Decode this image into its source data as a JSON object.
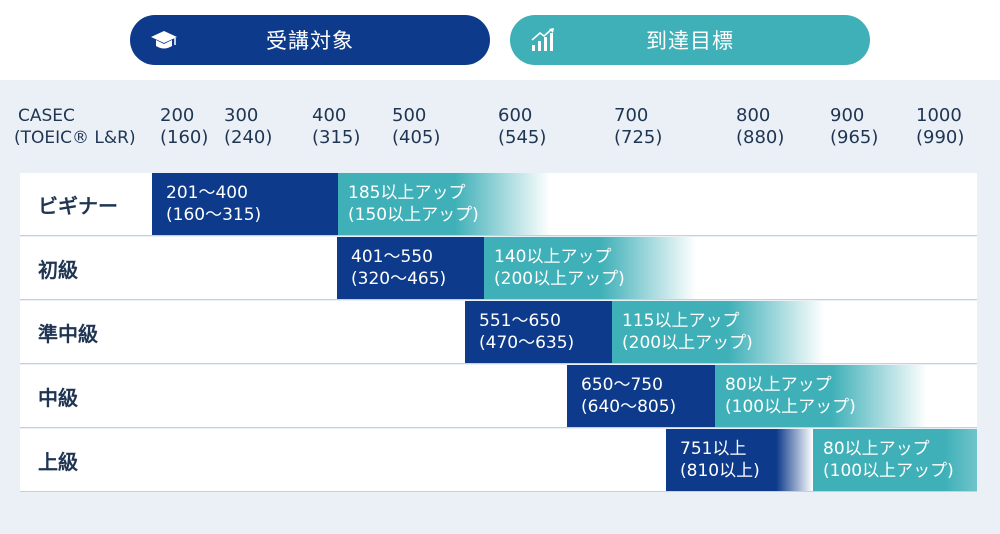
{
  "header": {
    "target_label": "受講対象",
    "goal_label": "到達目標",
    "target_icon": "graduation-cap-icon",
    "goal_icon": "bar-chart-growth-icon",
    "colors": {
      "navy": "#0d3a8a",
      "teal": "#3fb0b8",
      "panel": "#eaf0f6"
    }
  },
  "scale": {
    "head_line1": "CASEC",
    "head_line2": "(TOEIC® L&R)",
    "ticks": [
      {
        "casec": "200",
        "toeic": "(160)"
      },
      {
        "casec": "300",
        "toeic": "(240)"
      },
      {
        "casec": "400",
        "toeic": "(315)"
      },
      {
        "casec": "500",
        "toeic": "(405)"
      },
      {
        "casec": "600",
        "toeic": "(545)"
      },
      {
        "casec": "700",
        "toeic": "(725)"
      },
      {
        "casec": "800",
        "toeic": "(880)"
      },
      {
        "casec": "900",
        "toeic": "(965)"
      },
      {
        "casec": "1000",
        "toeic": "(990)"
      }
    ]
  },
  "chart_data": {
    "type": "bar",
    "title": "",
    "x_axis": "CASEC (TOEIC® L&R)",
    "xlim": [
      200,
      1000
    ],
    "categories": [
      "ビギナー",
      "初級",
      "準中級",
      "中級",
      "上級"
    ],
    "series": [
      {
        "name": "受講対象",
        "ranges_casec": [
          [
            201,
            400
          ],
          [
            401,
            550
          ],
          [
            551,
            650
          ],
          [
            650,
            750
          ],
          [
            751,
            800
          ]
        ],
        "line1": [
          "201〜400",
          "401〜550",
          "551〜650",
          "650〜750",
          "751以上"
        ],
        "line2": [
          "(160〜315)",
          "(320〜465)",
          "(470〜635)",
          "(640〜805)",
          "(810以上)"
        ]
      },
      {
        "name": "到達目標",
        "line1": [
          "185以上アップ",
          "140以上アップ",
          "115以上アップ",
          "80以上アップ",
          "80以上アップ"
        ],
        "line2": [
          "(150以上アップ)",
          "(200以上アップ)",
          "(200以上アップ)",
          "(100以上アップ)",
          "(100以上アップ)"
        ]
      }
    ]
  }
}
